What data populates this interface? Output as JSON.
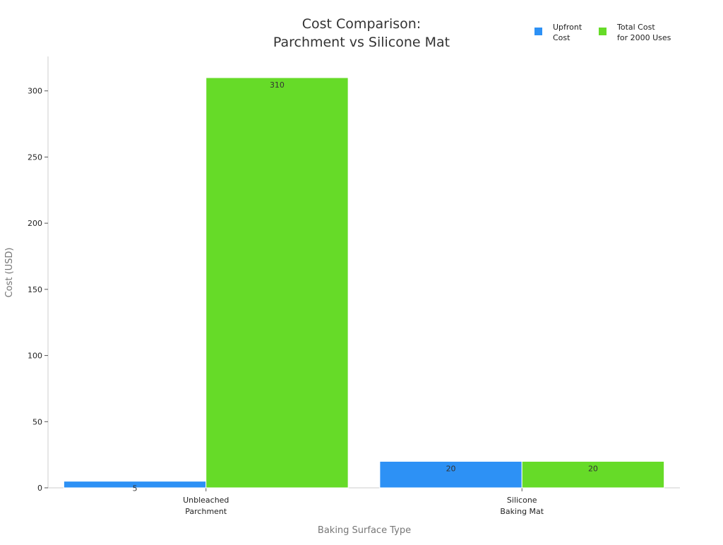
{
  "chart_data": {
    "type": "bar",
    "title": [
      "Cost Comparison:",
      "Parchment vs Silicone Mat"
    ],
    "xlabel": "Baking Surface Type",
    "ylabel": "Cost (USD)",
    "categories": [
      [
        "Unbleached",
        "Parchment"
      ],
      [
        "Silicone",
        "Baking Mat"
      ]
    ],
    "series": [
      {
        "name": [
          "Upfront",
          "Cost"
        ],
        "values": [
          5,
          20
        ],
        "color": "#2d91f5",
        "labels": [
          "5",
          "20"
        ]
      },
      {
        "name": [
          "Total Cost",
          "for 2000 Uses"
        ],
        "values": [
          310,
          20
        ],
        "color": "#66db28",
        "labels": [
          "310",
          "20"
        ]
      }
    ],
    "ylim": [
      0,
      326
    ],
    "yticks": [
      0,
      50,
      100,
      150,
      200,
      250,
      300
    ],
    "grid": false,
    "legend": "top-right"
  }
}
